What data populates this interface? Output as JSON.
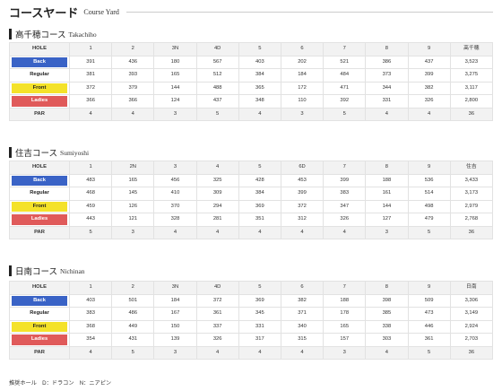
{
  "header": {
    "title_jp": "コースヤード",
    "title_en": "Course Yard"
  },
  "sections": [
    {
      "name_jp": "高千穂コース",
      "name_en": "Takachiho",
      "holes": [
        "1",
        "2",
        "3N",
        "4D",
        "5",
        "6",
        "7",
        "8",
        "9"
      ],
      "total_label": "高千穂",
      "rows": [
        {
          "label": "Back",
          "values": [
            "391",
            "436",
            "180",
            "567",
            "403",
            "202",
            "521",
            "386",
            "437"
          ],
          "total": "3,523"
        },
        {
          "label": "Regular",
          "values": [
            "381",
            "393",
            "165",
            "512",
            "384",
            "184",
            "484",
            "373",
            "399"
          ],
          "total": "3,275"
        },
        {
          "label": "Front",
          "values": [
            "372",
            "379",
            "144",
            "488",
            "365",
            "172",
            "471",
            "344",
            "382"
          ],
          "total": "3,117"
        },
        {
          "label": "Ladies",
          "values": [
            "366",
            "366",
            "124",
            "437",
            "348",
            "110",
            "392",
            "331",
            "326"
          ],
          "total": "2,800"
        },
        {
          "label": "PAR",
          "values": [
            "4",
            "4",
            "3",
            "5",
            "4",
            "3",
            "5",
            "4",
            "4"
          ],
          "total": "36"
        }
      ]
    },
    {
      "name_jp": "住吉コース",
      "name_en": "Sumiyoshi",
      "holes": [
        "1",
        "2N",
        "3",
        "4",
        "5",
        "6D",
        "7",
        "8",
        "9"
      ],
      "total_label": "住吉",
      "rows": [
        {
          "label": "Back",
          "values": [
            "483",
            "165",
            "456",
            "325",
            "428",
            "453",
            "399",
            "188",
            "536"
          ],
          "total": "3,433"
        },
        {
          "label": "Regular",
          "values": [
            "468",
            "145",
            "410",
            "309",
            "384",
            "399",
            "383",
            "161",
            "514"
          ],
          "total": "3,173"
        },
        {
          "label": "Front",
          "values": [
            "459",
            "126",
            "370",
            "294",
            "369",
            "372",
            "347",
            "144",
            "498"
          ],
          "total": "2,979"
        },
        {
          "label": "Ladies",
          "values": [
            "443",
            "121",
            "328",
            "281",
            "351",
            "312",
            "326",
            "127",
            "479"
          ],
          "total": "2,768"
        },
        {
          "label": "PAR",
          "values": [
            "5",
            "3",
            "4",
            "4",
            "4",
            "4",
            "4",
            "3",
            "5"
          ],
          "total": "36"
        }
      ]
    },
    {
      "name_jp": "日南コース",
      "name_en": "Nichinan",
      "holes": [
        "1",
        "2",
        "3N",
        "4D",
        "5",
        "6",
        "7",
        "8",
        "9"
      ],
      "total_label": "日南",
      "rows": [
        {
          "label": "Back",
          "values": [
            "403",
            "501",
            "184",
            "372",
            "369",
            "382",
            "188",
            "398",
            "509"
          ],
          "total": "3,306"
        },
        {
          "label": "Regular",
          "values": [
            "383",
            "486",
            "167",
            "361",
            "345",
            "371",
            "178",
            "385",
            "473"
          ],
          "total": "3,149"
        },
        {
          "label": "Front",
          "values": [
            "368",
            "449",
            "150",
            "337",
            "331",
            "340",
            "165",
            "338",
            "446"
          ],
          "total": "2,924"
        },
        {
          "label": "Ladies",
          "values": [
            "354",
            "431",
            "139",
            "326",
            "317",
            "315",
            "157",
            "303",
            "361"
          ],
          "total": "2,703"
        },
        {
          "label": "PAR",
          "values": [
            "4",
            "5",
            "3",
            "4",
            "4",
            "4",
            "3",
            "4",
            "5"
          ],
          "total": "36"
        }
      ]
    }
  ],
  "hole_label": "HOLE",
  "footnote": "推奨ホール　D：ドラコン　N：ニアピン"
}
